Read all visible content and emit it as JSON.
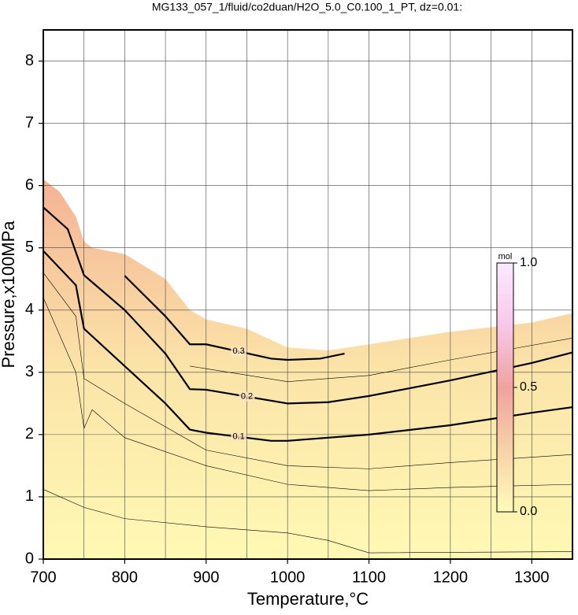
{
  "chart_data": {
    "type": "contour",
    "title": "MG133_057_1/fluid/co2duan/H2O_5.0_C0.100_1_PT, dz=0.01:",
    "x_label": "Temperature,°C",
    "y_label": "Pressure,x100MPa",
    "xlim": [
      700,
      1350
    ],
    "ylim": [
      0,
      8.5
    ],
    "xticks": [
      700,
      800,
      900,
      1000,
      1100,
      1200,
      1300
    ],
    "xminor": [
      750,
      850,
      950,
      1050,
      1150,
      1250
    ],
    "yticks": [
      0,
      1,
      2,
      3,
      4,
      5,
      6,
      7,
      8
    ],
    "grid": true,
    "fill_colors": [
      "#fff9b4",
      "#fbe4a8",
      "#f4b394"
    ],
    "fill_boundary": {
      "x": [
        700,
        720,
        740,
        750,
        760,
        800,
        850,
        880,
        900,
        950,
        1000,
        1050,
        1100,
        1200,
        1300,
        1350
      ],
      "y": [
        6.1,
        5.9,
        5.5,
        5.1,
        5.0,
        4.9,
        4.5,
        4.0,
        3.85,
        3.7,
        3.4,
        3.35,
        3.45,
        3.65,
        3.8,
        3.95
      ]
    },
    "contours": [
      {
        "level": 0.1,
        "x": [
          700,
          740,
          750,
          800,
          850,
          880,
          900,
          980,
          1000,
          1100,
          1200,
          1300,
          1350
        ],
        "y": [
          4.95,
          4.4,
          3.7,
          3.1,
          2.5,
          2.08,
          2.03,
          1.9,
          1.9,
          2.0,
          2.15,
          2.35,
          2.44
        ]
      },
      {
        "level": 0.2,
        "x": [
          700,
          730,
          750,
          800,
          850,
          880,
          900,
          1000,
          1050,
          1100,
          1200,
          1300,
          1350
        ],
        "y": [
          5.65,
          5.3,
          4.56,
          4.0,
          3.3,
          2.73,
          2.72,
          2.5,
          2.52,
          2.62,
          2.87,
          3.15,
          3.32
        ]
      },
      {
        "level": 0.3,
        "x": [
          800,
          850,
          880,
          900,
          980,
          1000,
          1040,
          1070
        ],
        "y": [
          4.55,
          3.9,
          3.45,
          3.45,
          3.22,
          3.2,
          3.22,
          3.3
        ]
      }
    ],
    "thin_contours": [
      {
        "x": [
          700,
          750,
          800,
          900,
          1000,
          1050,
          1100,
          1350
        ],
        "y": [
          1.12,
          0.83,
          0.65,
          0.52,
          0.42,
          0.3,
          0.1,
          0.12
        ]
      },
      {
        "x": [
          700,
          740,
          750,
          760,
          800,
          900,
          1000,
          1100,
          1200,
          1350
        ],
        "y": [
          4.2,
          3.0,
          2.1,
          2.4,
          1.95,
          1.5,
          1.2,
          1.1,
          1.15,
          1.2
        ]
      },
      {
        "x": [
          700,
          740,
          750,
          800,
          900,
          1000,
          1100,
          1200,
          1350
        ],
        "y": [
          4.6,
          3.9,
          2.9,
          2.5,
          1.75,
          1.5,
          1.45,
          1.55,
          1.68
        ]
      },
      {
        "x": [
          880,
          1000,
          1100,
          1200,
          1350
        ],
        "y": [
          3.1,
          2.85,
          2.95,
          3.2,
          3.55
        ]
      }
    ],
    "colorbar": {
      "label": "mol",
      "lim": [
        0,
        1
      ],
      "ticks": [
        {
          "value": 0,
          "label": "0.0"
        },
        0.5,
        {
          "value": 1,
          "label": "1.0"
        }
      ],
      "colors": [
        "#fffbb8",
        "#f7d2a8",
        "#f0a2a0",
        "#f8c8e8",
        "#fbeaff"
      ]
    }
  }
}
